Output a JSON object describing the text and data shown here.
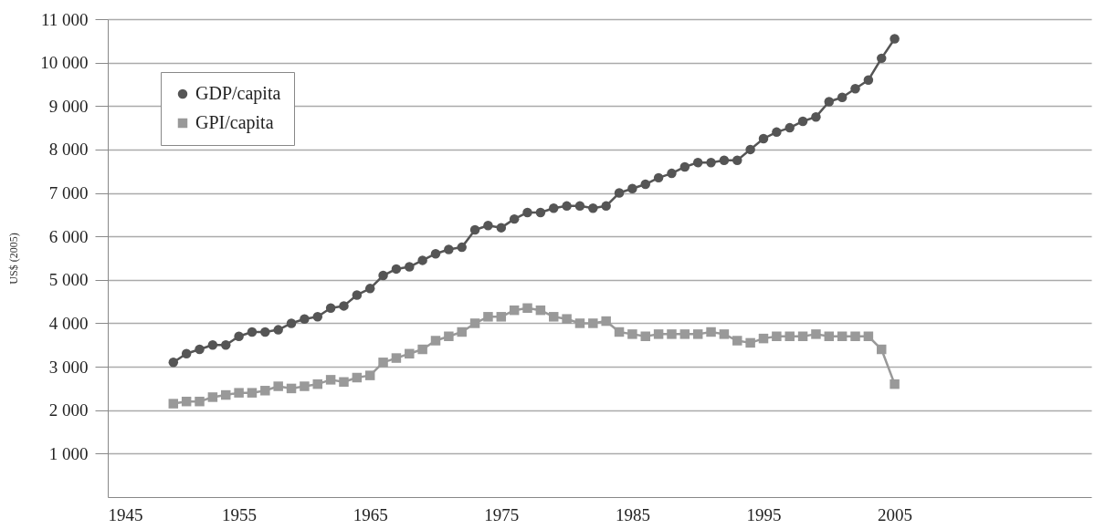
{
  "chart_data": {
    "type": "line",
    "ylabel": "US$ (2005)",
    "x": [
      1950,
      1951,
      1952,
      1953,
      1954,
      1955,
      1956,
      1957,
      1958,
      1959,
      1960,
      1961,
      1962,
      1963,
      1964,
      1965,
      1966,
      1967,
      1968,
      1969,
      1970,
      1971,
      1972,
      1973,
      1974,
      1975,
      1976,
      1977,
      1978,
      1979,
      1980,
      1981,
      1982,
      1983,
      1984,
      1985,
      1986,
      1987,
      1988,
      1989,
      1990,
      1991,
      1992,
      1993,
      1994,
      1995,
      1996,
      1997,
      1998,
      1999,
      2000,
      2001,
      2002,
      2003,
      2004,
      2005
    ],
    "series": [
      {
        "name": "GDP/capita",
        "color": "#555555",
        "marker": "circle",
        "values": [
          3100,
          3300,
          3400,
          3500,
          3500,
          3700,
          3800,
          3800,
          3850,
          4000,
          4100,
          4150,
          4350,
          4400,
          4650,
          4800,
          5100,
          5250,
          5300,
          5450,
          5600,
          5700,
          5750,
          6150,
          6250,
          6200,
          6400,
          6550,
          6550,
          6650,
          6700,
          6700,
          6650,
          6700,
          7000,
          7100,
          7200,
          7350,
          7450,
          7600,
          7700,
          7700,
          7750,
          7750,
          8000,
          8250,
          8400,
          8500,
          8650,
          8750,
          9100,
          9200,
          9400,
          9600,
          10100,
          10550
        ]
      },
      {
        "name": "GPI/capita",
        "color": "#999999",
        "marker": "square",
        "values": [
          2150,
          2200,
          2200,
          2300,
          2350,
          2400,
          2400,
          2450,
          2550,
          2500,
          2550,
          2600,
          2700,
          2650,
          2750,
          2800,
          3100,
          3200,
          3300,
          3400,
          3600,
          3700,
          3800,
          4000,
          4150,
          4150,
          4300,
          4350,
          4300,
          4150,
          4100,
          4000,
          4000,
          4050,
          3800,
          3750,
          3700,
          3750,
          3750,
          3750,
          3750,
          3800,
          3750,
          3600,
          3550,
          3650,
          3700,
          3700,
          3700,
          3750,
          3700,
          3700,
          3700,
          3700,
          3400,
          2600
        ]
      }
    ],
    "xlim": [
      1945,
      2020
    ],
    "xticks": [
      1945,
      1955,
      1965,
      1975,
      1985,
      1995,
      2005
    ],
    "ylim": [
      0,
      11000
    ],
    "yticks": [
      {
        "value": 1000,
        "label": "1 000"
      },
      {
        "value": 2000,
        "label": "2 000"
      },
      {
        "value": 3000,
        "label": "3 000"
      },
      {
        "value": 4000,
        "label": "4 000"
      },
      {
        "value": 5000,
        "label": "5 000"
      },
      {
        "value": 6000,
        "label": "6 000"
      },
      {
        "value": 7000,
        "label": "7 000"
      },
      {
        "value": 8000,
        "label": "8 000"
      },
      {
        "value": 9000,
        "label": "9 000"
      },
      {
        "value": 10000,
        "label": "10 000"
      },
      {
        "value": 11000,
        "label": "11 000"
      }
    ],
    "grid": "y",
    "legend": "top left",
    "line_style": "solid"
  }
}
